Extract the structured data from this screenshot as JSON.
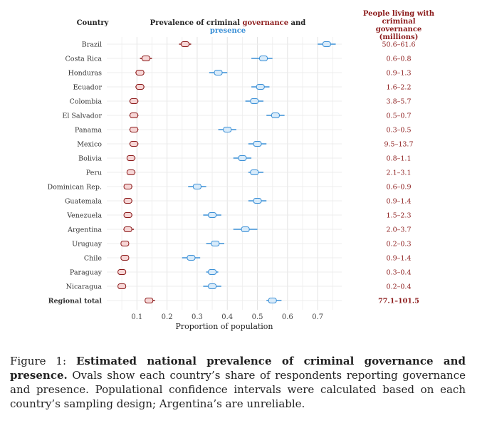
{
  "header": {
    "country": "Country",
    "prevalence_prefix": "Prevalence of criminal ",
    "governance_word": "governance",
    "and_word": " and ",
    "presence_word": "presence",
    "people_living": "People living with criminal governance (millions)"
  },
  "caption": {
    "label": "Figure 1:",
    "title": "Estimated national prevalence of criminal governance and presence.",
    "body": "Ovals show each country’s share of respondents reporting governance and presence. Populational confidence intervals were calculated based on each country’s sampling design; Argentina’s are unreliable."
  },
  "colors": {
    "governance": "#8b1a1a",
    "presence": "#3a8fd6",
    "grid": "#e6e6e6"
  },
  "chart_data": {
    "type": "scatter",
    "title": "Prevalence of criminal governance and presence",
    "xlabel": "Proportion of population",
    "ylabel": "Country",
    "xlim": [
      0.0,
      0.78
    ],
    "xticks": [
      0.1,
      0.2,
      0.3,
      0.4,
      0.5,
      0.6,
      0.7
    ],
    "xtick_labels": [
      "0.1",
      "0.2",
      "0.3",
      "0.4",
      "0.5",
      "0.6",
      "0.7"
    ],
    "categories": [
      "Brazil",
      "Costa Rica",
      "Honduras",
      "Ecuador",
      "Colombia",
      "El Salvador",
      "Panama",
      "Mexico",
      "Bolivia",
      "Peru",
      "Dominican Rep.",
      "Guatemala",
      "Venezuela",
      "Argentina",
      "Uruguay",
      "Chile",
      "Paraguay",
      "Nicaragua",
      "Regional total"
    ],
    "series": [
      {
        "name": "governance",
        "values": [
          0.26,
          0.13,
          0.11,
          0.11,
          0.09,
          0.09,
          0.09,
          0.09,
          0.08,
          0.08,
          0.07,
          0.07,
          0.07,
          0.07,
          0.06,
          0.06,
          0.05,
          0.05,
          0.14
        ],
        "ci_low": [
          0.24,
          0.11,
          0.095,
          0.095,
          0.075,
          0.075,
          0.075,
          0.075,
          0.07,
          0.07,
          0.06,
          0.06,
          0.06,
          0.055,
          0.055,
          0.055,
          0.045,
          0.045,
          0.13
        ],
        "ci_high": [
          0.28,
          0.15,
          0.125,
          0.125,
          0.105,
          0.105,
          0.105,
          0.105,
          0.095,
          0.095,
          0.085,
          0.085,
          0.085,
          0.09,
          0.07,
          0.07,
          0.06,
          0.06,
          0.16
        ]
      },
      {
        "name": "presence",
        "values": [
          0.73,
          0.52,
          0.37,
          0.51,
          0.49,
          0.56,
          0.4,
          0.5,
          0.45,
          0.49,
          0.3,
          0.5,
          0.35,
          0.46,
          0.36,
          0.28,
          0.35,
          0.35,
          0.55
        ],
        "ci_low": [
          0.7,
          0.48,
          0.34,
          0.48,
          0.46,
          0.53,
          0.37,
          0.47,
          0.42,
          0.47,
          0.27,
          0.47,
          0.32,
          0.42,
          0.33,
          0.25,
          0.33,
          0.32,
          0.53
        ],
        "ci_high": [
          0.76,
          0.55,
          0.4,
          0.54,
          0.52,
          0.59,
          0.43,
          0.53,
          0.48,
          0.52,
          0.33,
          0.53,
          0.38,
          0.5,
          0.39,
          0.31,
          0.37,
          0.38,
          0.58
        ]
      }
    ],
    "people_living": [
      "50.6–61.6",
      "0.6–0.8",
      "0.9–1.3",
      "1.6–2.2",
      "3.8–5.7",
      "0.5–0.7",
      "0.3–0.5",
      "9.5–13.7",
      "0.8–1.1",
      "2.1–3.1",
      "0.6–0.9",
      "0.9–1.4",
      "1.5–2.3",
      "2.0–3.7",
      "0.2–0.3",
      "0.9–1.4",
      "0.3–0.4",
      "0.2–0.4",
      "77.1–101.5"
    ],
    "grid": true,
    "legend": "none"
  }
}
